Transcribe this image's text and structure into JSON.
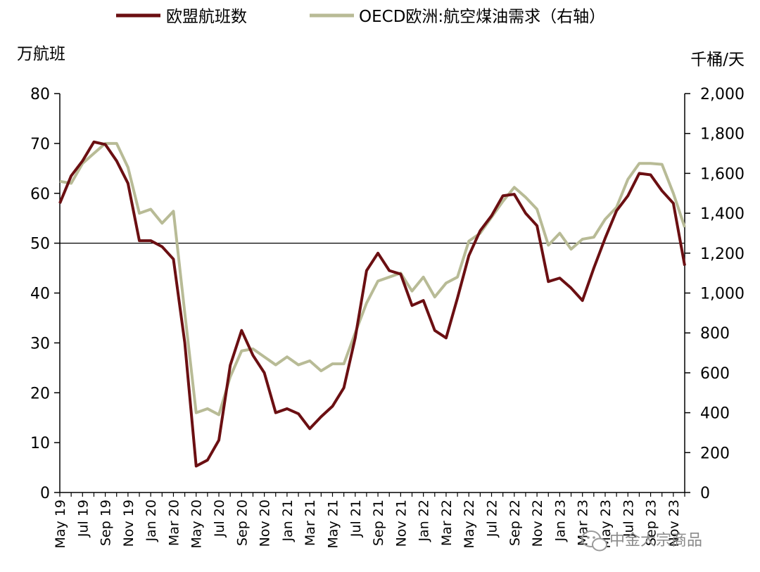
{
  "chart_data": {
    "type": "line",
    "x": [
      "May 19",
      "Jun 19",
      "Jul 19",
      "Aug 19",
      "Sep 19",
      "Oct 19",
      "Nov 19",
      "Dec 19",
      "Jan 20",
      "Feb 20",
      "Mar 20",
      "Apr 20",
      "May 20",
      "Jun 20",
      "Jul 20",
      "Aug 20",
      "Sep 20",
      "Oct 20",
      "Nov 20",
      "Dec 20",
      "Jan 21",
      "Feb 21",
      "Mar 21",
      "Apr 21",
      "May 21",
      "Jun 21",
      "Jul 21",
      "Aug 21",
      "Sep 21",
      "Oct 21",
      "Nov 21",
      "Dec 21",
      "Jan 22",
      "Feb 22",
      "Mar 22",
      "Apr 22",
      "May 22",
      "Jun 22",
      "Jul 22",
      "Aug 22",
      "Sep 22",
      "Oct 22",
      "Nov 22",
      "Dec 22",
      "Jan 23",
      "Feb 23",
      "Mar 23",
      "Apr 23",
      "May 23",
      "Jun 23",
      "Jul 23",
      "Aug 23",
      "Sep 23",
      "Oct 23",
      "Nov 23",
      "Dec 23"
    ],
    "x_tick_labels": [
      "May 19",
      "Jul 19",
      "Sep 19",
      "Nov 19",
      "Jan 20",
      "Mar 20",
      "May 20",
      "Jul 20",
      "Sep 20",
      "Nov 20",
      "Jan 21",
      "Mar 21",
      "May 21",
      "Jul 21",
      "Sep 21",
      "Nov 21",
      "Jan 22",
      "Mar 22",
      "May 22",
      "Jul 22",
      "Sep 22",
      "Nov 22",
      "Jan 23",
      "Mar 23",
      "May 23",
      "Jul 23",
      "Sep 23",
      "Nov 23"
    ],
    "series": [
      {
        "name": "欧盟航班数",
        "axis": "left",
        "color": "#6b0f12",
        "values": [
          58.0,
          63.5,
          66.5,
          70.3,
          69.8,
          66.5,
          62.0,
          50.5,
          50.5,
          49.3,
          46.8,
          30.0,
          5.3,
          6.5,
          10.5,
          25.5,
          32.5,
          27.5,
          24.0,
          16.0,
          16.8,
          15.8,
          12.8,
          15.2,
          17.3,
          21.0,
          31.0,
          44.5,
          48.0,
          44.5,
          43.8,
          37.5,
          38.5,
          32.5,
          31.0,
          39.0,
          47.5,
          52.5,
          55.5,
          59.5,
          59.8,
          56.0,
          53.5,
          42.3,
          43.0,
          41.0,
          38.5,
          45.0,
          51.0,
          56.5,
          59.5,
          64.0,
          63.7,
          60.5,
          58.0,
          45.5
        ]
      },
      {
        "name": "OECD欧洲:航空煤油需求（右轴）",
        "axis": "right",
        "color": "#b8bb96",
        "values": [
          1560,
          1550,
          1650,
          1700,
          1750,
          1750,
          1630,
          1400,
          1420,
          1350,
          1410,
          900,
          400,
          420,
          390,
          580,
          710,
          720,
          680,
          640,
          680,
          640,
          660,
          610,
          645,
          645,
          800,
          950,
          1060,
          1080,
          1100,
          1010,
          1080,
          980,
          1050,
          1080,
          1260,
          1300,
          1380,
          1460,
          1530,
          1480,
          1420,
          1240,
          1300,
          1220,
          1270,
          1280,
          1370,
          1430,
          1570,
          1650,
          1650,
          1645,
          1500,
          1330
        ]
      }
    ],
    "left_axis": {
      "unit": "万航班",
      "ylim": [
        0,
        80
      ],
      "ticks": [
        "0",
        "10",
        "20",
        "30",
        "40",
        "50",
        "60",
        "70",
        "80"
      ]
    },
    "right_axis": {
      "unit": "千桶/天",
      "ylim": [
        0,
        2000
      ],
      "ticks": [
        "0",
        "200",
        "400",
        "600",
        "800",
        "1,000",
        "1,200",
        "1,400",
        "1,600",
        "1,800",
        "2,000"
      ]
    },
    "reference_line": {
      "axis": "left",
      "value": 50
    },
    "legend_position": "top",
    "grid": false
  },
  "watermark": {
    "text": "中金大宗商品",
    "icon": "wechat-icon"
  }
}
